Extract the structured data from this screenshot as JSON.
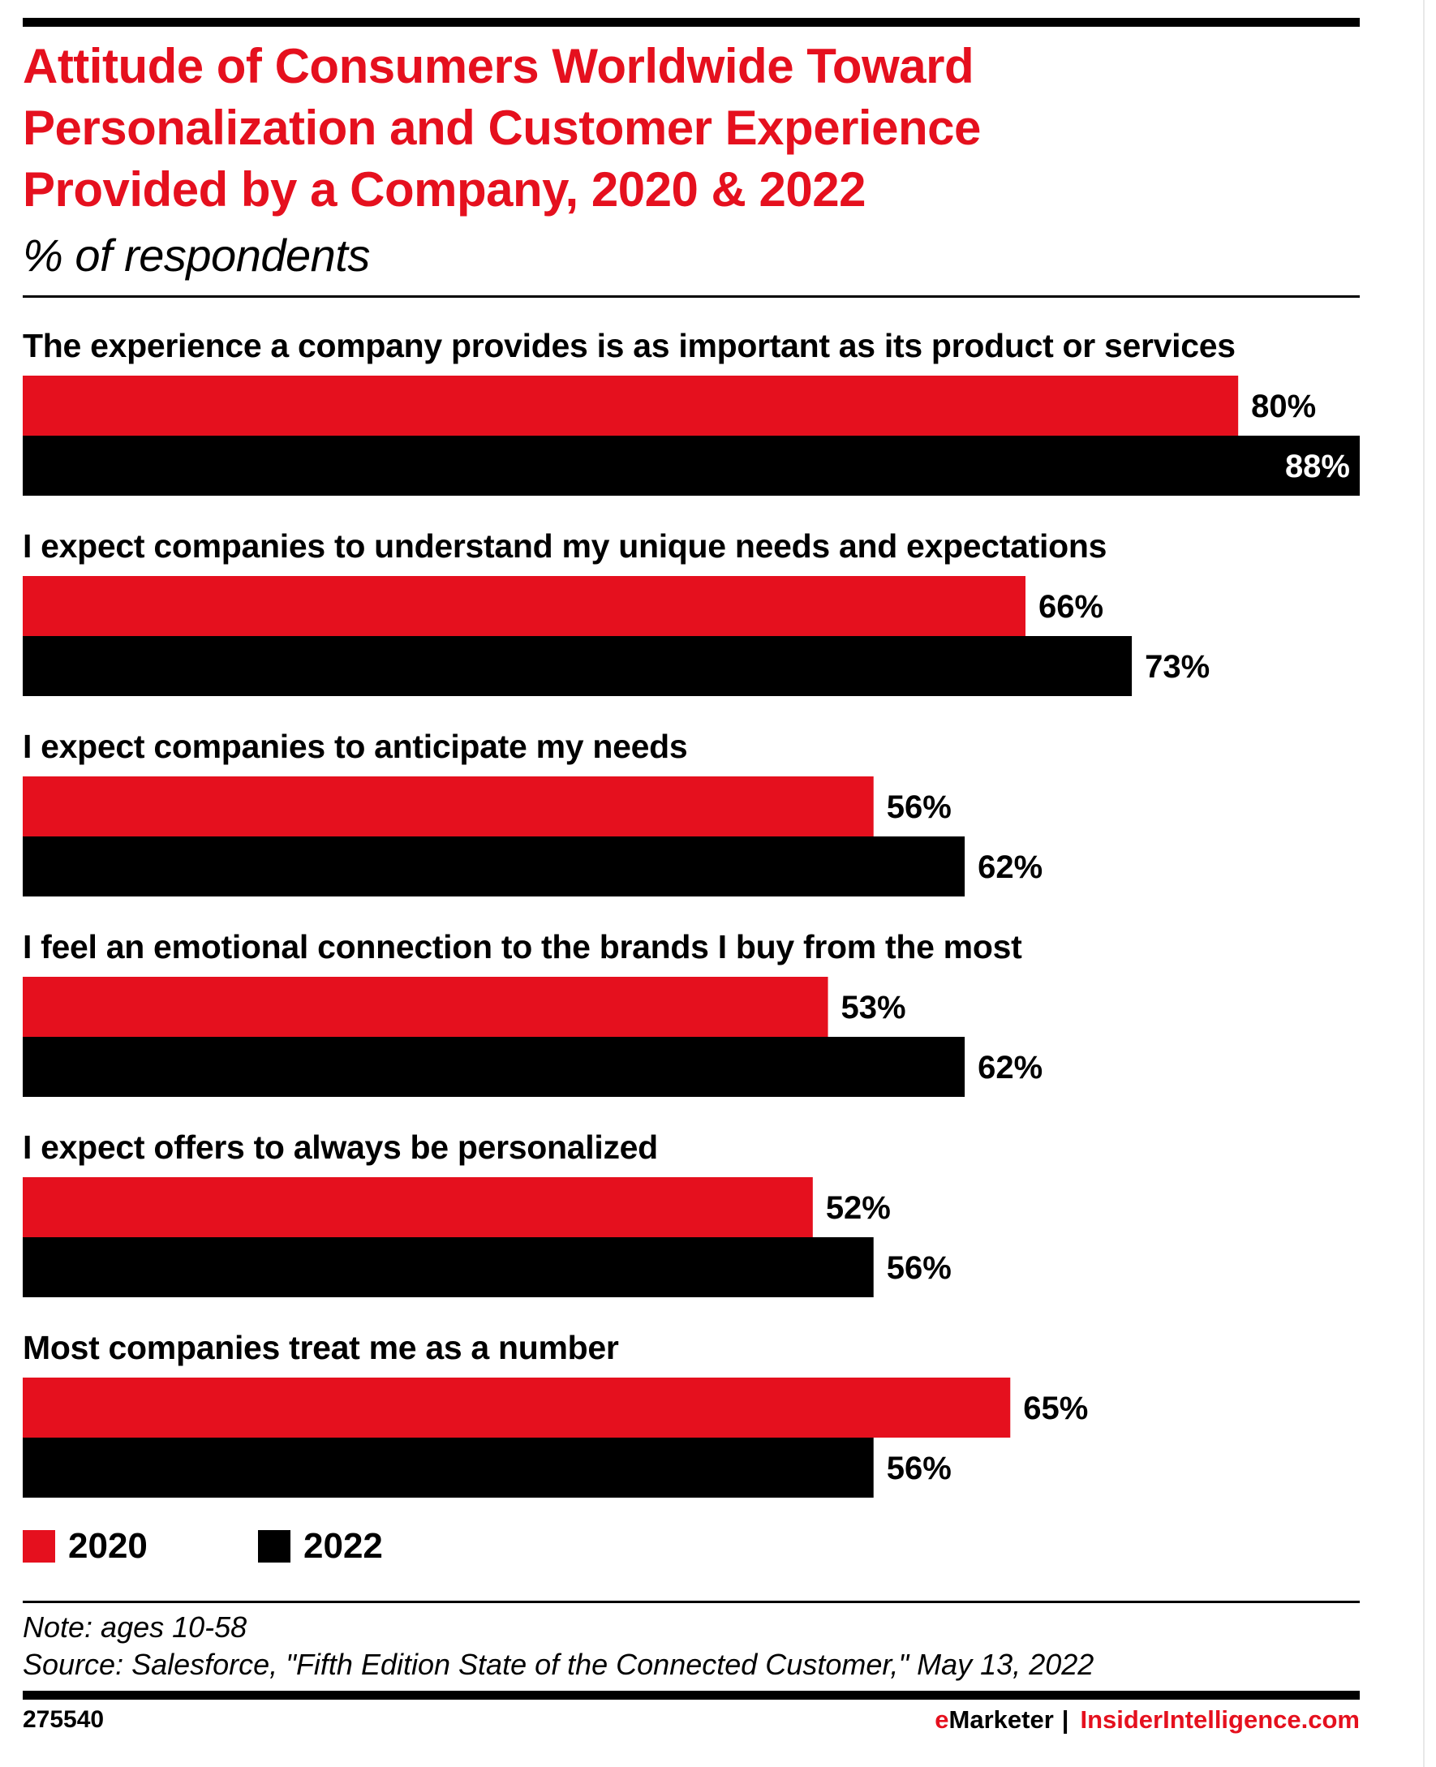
{
  "header": {
    "title_lines": [
      "Attitude of Consumers Worldwide Toward",
      "Personalization and Customer Experience",
      "Provided by a Company, 2020 & 2022"
    ],
    "subtitle": "% of respondents"
  },
  "colors": {
    "series_2020": "#e5101e",
    "series_2022": "#000000",
    "brand_red": "#e5101e"
  },
  "chart_data": {
    "type": "bar",
    "orientation": "horizontal",
    "title": "Attitude of Consumers Worldwide Toward Personalization and Customer Experience Provided by a Company, 2020 & 2022",
    "subtitle": "% of respondents",
    "xlabel": "",
    "ylabel": "",
    "unit": "%",
    "xlim": [
      0,
      88
    ],
    "grid": false,
    "legend_position": "bottom-left",
    "categories": [
      "The experience a company provides is as important as its product or services",
      "I expect companies to understand my unique needs and expectations",
      "I expect companies to anticipate my needs",
      "I feel an emotional connection to the brands I buy from the most",
      "I expect offers to always be personalized",
      "Most companies treat me as a number"
    ],
    "series": [
      {
        "name": "2020",
        "color": "#e5101e",
        "values": [
          80,
          66,
          56,
          53,
          52,
          65
        ]
      },
      {
        "name": "2022",
        "color": "#000000",
        "values": [
          88,
          73,
          62,
          62,
          56,
          56
        ]
      }
    ]
  },
  "legend": [
    {
      "label": "2020",
      "color": "#e5101e"
    },
    {
      "label": "2022",
      "color": "#000000"
    }
  ],
  "footer": {
    "note": "Note: ages 10-58",
    "source": "Source: Salesforce, \"Fifth Edition State of the Connected Customer,\" May 13, 2022",
    "chart_id": "275540",
    "brand_e": "e",
    "brand_marketer": "Marketer",
    "brand_separator": "|",
    "brand_site": "InsiderIntelligence.com"
  }
}
